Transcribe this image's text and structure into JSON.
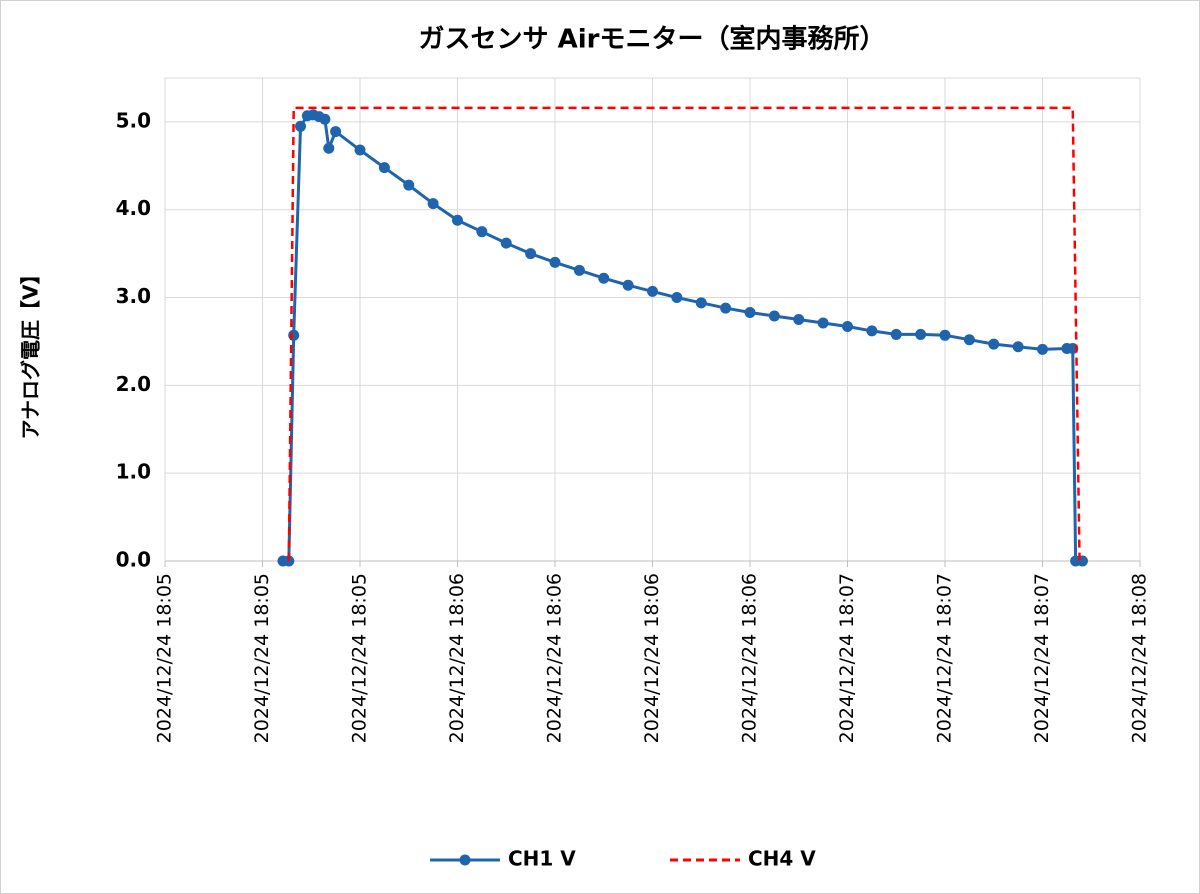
{
  "chart_data": {
    "type": "line",
    "title": "ガスセンサ Airモニター（室内事務所）",
    "ylabel": "アナログ電圧【V】",
    "xlim": [
      0,
      10
    ],
    "xticks": [
      {
        "value": 0,
        "label": "2024/12/24 18:05"
      },
      {
        "value": 1,
        "label": "2024/12/24 18:05"
      },
      {
        "value": 2,
        "label": "2024/12/24 18:05"
      },
      {
        "value": 3,
        "label": "2024/12/24 18:06"
      },
      {
        "value": 4,
        "label": "2024/12/24 18:06"
      },
      {
        "value": 5,
        "label": "2024/12/24 18:06"
      },
      {
        "value": 6,
        "label": "2024/12/24 18:06"
      },
      {
        "value": 7,
        "label": "2024/12/24 18:07"
      },
      {
        "value": 8,
        "label": "2024/12/24 18:07"
      },
      {
        "value": 9,
        "label": "2024/12/24 18:07"
      },
      {
        "value": 10,
        "label": "2024/12/24 18:08"
      }
    ],
    "ylim": [
      0,
      5.5
    ],
    "yticks": [
      {
        "value": 0,
        "label": "0.0"
      },
      {
        "value": 1,
        "label": "1.0"
      },
      {
        "value": 2,
        "label": "2.0"
      },
      {
        "value": 3,
        "label": "3.0"
      },
      {
        "value": 4,
        "label": "4.0"
      },
      {
        "value": 5,
        "label": "5.0"
      }
    ],
    "grid": true,
    "legend": "bottom",
    "series": [
      {
        "name": "CH1 V",
        "color": "#1f64ad",
        "markers": true,
        "dash": "solid",
        "x": [
          1.21,
          1.27,
          1.32,
          1.39,
          1.46,
          1.52,
          1.58,
          1.64,
          1.68,
          1.75,
          2.0,
          2.25,
          2.5,
          2.75,
          3.0,
          3.25,
          3.5,
          3.75,
          4.0,
          4.25,
          4.5,
          4.75,
          5.0,
          5.25,
          5.5,
          5.75,
          6.0,
          6.25,
          6.5,
          6.75,
          7.0,
          7.25,
          7.5,
          7.75,
          8.0,
          8.25,
          8.5,
          8.75,
          9.0,
          9.25,
          9.31,
          9.34,
          9.41
        ],
        "values": [
          0,
          0,
          2.57,
          4.95,
          5.07,
          5.08,
          5.06,
          5.03,
          4.7,
          4.89,
          4.68,
          4.48,
          4.28,
          4.07,
          3.88,
          3.75,
          3.62,
          3.5,
          3.4,
          3.31,
          3.22,
          3.14,
          3.07,
          3.0,
          2.94,
          2.88,
          2.83,
          2.79,
          2.75,
          2.71,
          2.67,
          2.62,
          2.58,
          2.58,
          2.57,
          2.52,
          2.47,
          2.44,
          2.41,
          2.42,
          2.42,
          0,
          0
        ]
      },
      {
        "name": "CH4 V",
        "color": "#ff0000",
        "markers": false,
        "dash": "dashed",
        "x": [
          1.27,
          1.32,
          9.31,
          9.38
        ],
        "values": [
          0,
          5.16,
          5.16,
          0
        ]
      }
    ]
  }
}
